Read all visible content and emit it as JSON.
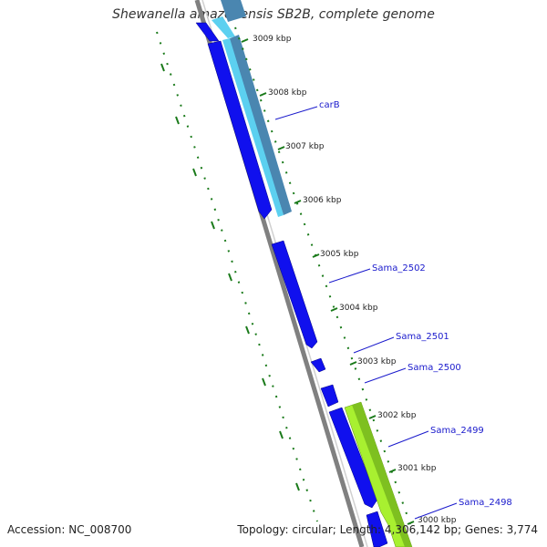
{
  "title": "Shewanella amazonensis SB2B, complete genome",
  "accession_text": "Accession: NC_008700",
  "stats_text": "Topology: circular; Length: 4,306,142 bp; Genes: 3,774",
  "colors": {
    "forward_cds": "#1010ee",
    "reverse_feature_light": "#5cd0f0",
    "reverse_feature_dark": "#4a86b0",
    "green_feature": "#a8f030",
    "backbone": "#808080",
    "tick": "#1a7a1a",
    "label": "#1a1acc"
  },
  "kbp_ticks": [
    "3009 kbp",
    "3008 kbp",
    "3007 kbp",
    "3006 kbp",
    "3005 kbp",
    "3004 kbp",
    "3003 kbp",
    "3002 kbp",
    "3001 kbp",
    "3000 kbp"
  ],
  "gene_labels": [
    "carB",
    "Sama_2502",
    "Sama_2501",
    "Sama_2500",
    "Sama_2499",
    "Sama_2498"
  ]
}
